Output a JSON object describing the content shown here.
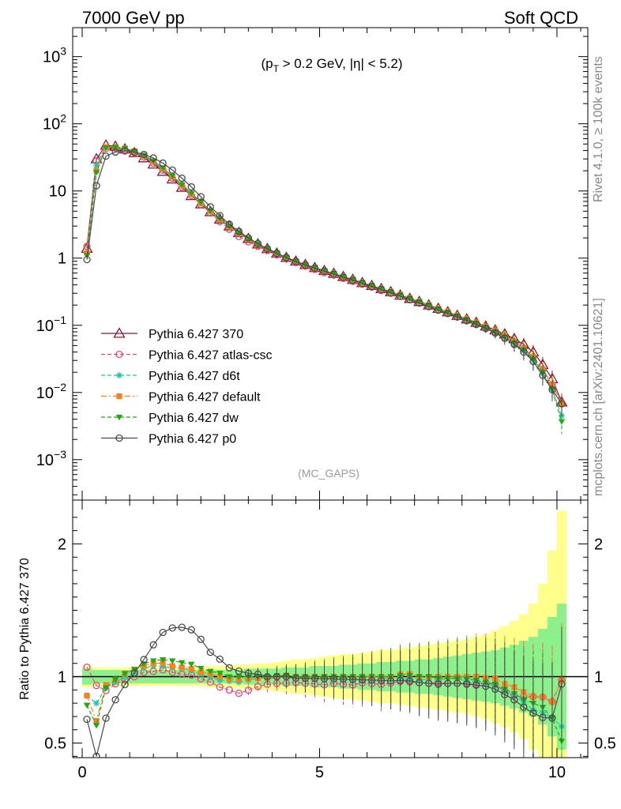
{
  "header": {
    "left": "7000 GeV pp",
    "right": "Soft QCD"
  },
  "side": {
    "top": "Rivet 4.1.0, ≥ 100k events",
    "bottom": "mcplots.cern.ch [arXiv:2401.10621]"
  },
  "chart_data": {
    "type": "line",
    "title": "(p_T > 0.2 GeV, |η| < 5.2)",
    "subtitle_parts": {
      "pre": "(p",
      "sub": "T",
      "post": " > 0.2 GeV, |η| < 5.2)"
    },
    "analysis": "(MC_GAPS)",
    "xlabel": "",
    "ylabel": "",
    "xlim": [
      -0.2,
      10.65
    ],
    "ylim": [
      0.00025,
      2700
    ],
    "yscale": "log",
    "xticks": [
      0,
      5,
      10
    ],
    "yticks": [
      {
        "value": 0.001,
        "label": "10^-3"
      },
      {
        "value": 0.01,
        "label": "10^-2"
      },
      {
        "value": 0.1,
        "label": "10^-1"
      },
      {
        "value": 1,
        "label": "1"
      },
      {
        "value": 10,
        "label": "10"
      },
      {
        "value": 100,
        "label": "10^2"
      },
      {
        "value": 1000,
        "label": "10^3"
      }
    ],
    "legend_position": "bottom-left",
    "series": [
      {
        "name": "Pythia 6.427 370",
        "color": "#8b1a2b",
        "marker": "triangle-open",
        "dash": "solid",
        "values": [
          1.4,
          30,
          48,
          46,
          42,
          37,
          31,
          25,
          19.5,
          15,
          11.3,
          8.5,
          6.4,
          4.9,
          3.8,
          3.0,
          2.4,
          1.95,
          1.62,
          1.38,
          1.18,
          1.02,
          0.9,
          0.8,
          0.72,
          0.65,
          0.59,
          0.53,
          0.48,
          0.43,
          0.39,
          0.35,
          0.315,
          0.28,
          0.25,
          0.225,
          0.2,
          0.178,
          0.158,
          0.14,
          0.124,
          0.11,
          0.097,
          0.085,
          0.074,
          0.063,
          0.052,
          0.04,
          0.026,
          0.016,
          0.0072
        ]
      },
      {
        "name": "Pythia 6.427 atlas-csc",
        "color": "#e8457a",
        "marker": "circle-open",
        "dash": "dashed",
        "values": [
          1.5,
          28,
          43,
          43.5,
          41,
          37,
          32,
          26,
          20.5,
          15.5,
          11.5,
          8.6,
          6.3,
          4.7,
          3.5,
          2.7,
          2.1,
          1.75,
          1.5,
          1.3,
          1.12,
          0.97,
          0.86,
          0.76,
          0.68,
          0.61,
          0.56,
          0.5,
          0.45,
          0.41,
          0.37,
          0.33,
          0.3,
          0.27,
          0.24,
          0.215,
          0.19,
          0.17,
          0.15,
          0.133,
          0.118,
          0.104,
          0.092,
          0.08,
          0.066,
          0.054,
          0.044,
          0.034,
          0.022,
          0.013,
          0.007
        ]
      },
      {
        "name": "Pythia 6.427 d6t",
        "color": "#1fc8a8",
        "marker": "star",
        "dash": "dashed",
        "values": [
          1.2,
          24,
          44,
          44,
          42,
          38,
          33,
          27,
          21,
          16,
          12,
          8.9,
          6.5,
          4.9,
          3.7,
          2.9,
          2.3,
          1.9,
          1.6,
          1.36,
          1.17,
          1.01,
          0.89,
          0.79,
          0.71,
          0.64,
          0.58,
          0.52,
          0.47,
          0.42,
          0.38,
          0.345,
          0.31,
          0.275,
          0.245,
          0.22,
          0.196,
          0.174,
          0.155,
          0.138,
          0.12,
          0.106,
          0.092,
          0.079,
          0.066,
          0.054,
          0.042,
          0.03,
          0.019,
          0.011,
          0.0045
        ]
      },
      {
        "name": "Pythia 6.427 default",
        "color": "#f5821f",
        "marker": "square",
        "dash": "dashdot",
        "values": [
          1.2,
          20,
          45,
          45,
          43,
          39,
          33.5,
          27.5,
          21.5,
          16.2,
          12.1,
          9.0,
          6.6,
          5.0,
          3.8,
          2.95,
          2.35,
          1.92,
          1.6,
          1.37,
          1.18,
          1.03,
          0.9,
          0.8,
          0.72,
          0.65,
          0.59,
          0.53,
          0.48,
          0.43,
          0.39,
          0.35,
          0.315,
          0.285,
          0.255,
          0.225,
          0.2,
          0.178,
          0.158,
          0.14,
          0.124,
          0.11,
          0.096,
          0.084,
          0.07,
          0.058,
          0.046,
          0.034,
          0.022,
          0.013,
          0.007
        ]
      },
      {
        "name": "Pythia 6.427 dw",
        "color": "#22a812",
        "marker": "triangle-down",
        "dash": "dashed",
        "values": [
          1.1,
          19,
          44,
          45,
          43,
          39,
          34,
          28,
          22,
          16.8,
          12.5,
          9.3,
          6.8,
          5.1,
          3.9,
          3.0,
          2.4,
          1.95,
          1.62,
          1.38,
          1.19,
          1.03,
          0.9,
          0.8,
          0.72,
          0.65,
          0.59,
          0.53,
          0.48,
          0.43,
          0.39,
          0.35,
          0.315,
          0.282,
          0.252,
          0.225,
          0.2,
          0.176,
          0.156,
          0.138,
          0.122,
          0.107,
          0.093,
          0.08,
          0.067,
          0.055,
          0.043,
          0.032,
          0.02,
          0.011,
          0.0037
        ]
      },
      {
        "name": "Pythia 6.427 p0",
        "color": "#4a4a4a",
        "marker": "circle-open",
        "dash": "solid",
        "values": [
          0.95,
          12,
          33,
          38,
          39.5,
          38,
          35,
          31,
          26,
          20.5,
          15.5,
          11.5,
          8.2,
          5.8,
          4.3,
          3.2,
          2.5,
          2.0,
          1.65,
          1.38,
          1.18,
          1.02,
          0.89,
          0.79,
          0.71,
          0.64,
          0.58,
          0.52,
          0.47,
          0.42,
          0.38,
          0.34,
          0.305,
          0.272,
          0.242,
          0.215,
          0.19,
          0.168,
          0.15,
          0.133,
          0.117,
          0.103,
          0.09,
          0.077,
          0.064,
          0.052,
          0.04,
          0.029,
          0.018,
          0.011,
          0.0068
        ]
      }
    ],
    "ratio": {
      "ylabel": "Ratio to Pythia 6.427 370",
      "ylim": [
        0.39,
        2.33
      ],
      "yticks": [
        0.5,
        1,
        2
      ],
      "reference": 1,
      "band_inner": [
        0.06,
        0.05,
        0.05,
        0.05,
        0.05,
        0.05,
        0.05,
        0.05,
        0.05,
        0.05,
        0.05,
        0.05,
        0.05,
        0.05,
        0.05,
        0.05,
        0.05,
        0.06,
        0.06,
        0.06,
        0.06,
        0.07,
        0.07,
        0.07,
        0.08,
        0.08,
        0.08,
        0.09,
        0.09,
        0.1,
        0.1,
        0.11,
        0.11,
        0.12,
        0.12,
        0.13,
        0.13,
        0.14,
        0.15,
        0.16,
        0.17,
        0.18,
        0.19,
        0.2,
        0.22,
        0.24,
        0.27,
        0.3,
        0.36,
        0.45,
        0.55
      ],
      "band_outer": [
        0.08,
        0.07,
        0.07,
        0.07,
        0.07,
        0.07,
        0.07,
        0.07,
        0.07,
        0.07,
        0.07,
        0.07,
        0.07,
        0.08,
        0.08,
        0.08,
        0.09,
        0.09,
        0.1,
        0.1,
        0.11,
        0.12,
        0.13,
        0.13,
        0.14,
        0.15,
        0.16,
        0.17,
        0.17,
        0.18,
        0.19,
        0.2,
        0.2,
        0.21,
        0.22,
        0.23,
        0.24,
        0.25,
        0.26,
        0.27,
        0.28,
        0.3,
        0.32,
        0.35,
        0.38,
        0.42,
        0.47,
        0.55,
        0.7,
        0.95,
        1.25
      ]
    }
  }
}
